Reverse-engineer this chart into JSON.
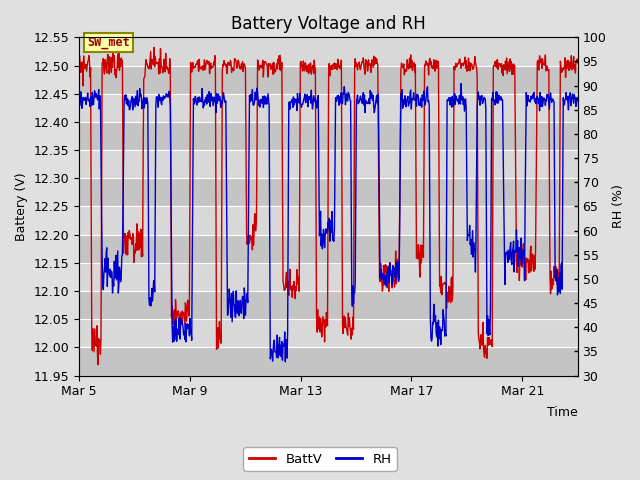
{
  "title": "Battery Voltage and RH",
  "xlabel": "Time",
  "ylabel_left": "Battery (V)",
  "ylabel_right": "RH (%)",
  "station_label": "SW_met",
  "xlim_days": [
    0,
    18
  ],
  "ylim_left": [
    11.95,
    12.55
  ],
  "ylim_right": [
    30,
    100
  ],
  "yticks_left": [
    11.95,
    12.0,
    12.05,
    12.1,
    12.15,
    12.2,
    12.25,
    12.3,
    12.35,
    12.4,
    12.45,
    12.5,
    12.55
  ],
  "yticks_right": [
    30,
    35,
    40,
    45,
    50,
    55,
    60,
    65,
    70,
    75,
    80,
    85,
    90,
    95,
    100
  ],
  "xtick_labels": [
    "Mar 5",
    "Mar 9",
    "Mar 13",
    "Mar 17",
    "Mar 21"
  ],
  "xtick_positions": [
    0,
    4,
    8,
    12,
    16
  ],
  "battv_color": "#cc0000",
  "rh_color": "#0000cc",
  "bg_color": "#e0e0e0",
  "plot_bg_color": "#d0d0d0",
  "band_light": "#d8d8d8",
  "band_dark": "#c4c4c4",
  "legend_battv": "BattV",
  "legend_rh": "RH",
  "title_fontsize": 12,
  "label_fontsize": 9,
  "tick_fontsize": 9
}
